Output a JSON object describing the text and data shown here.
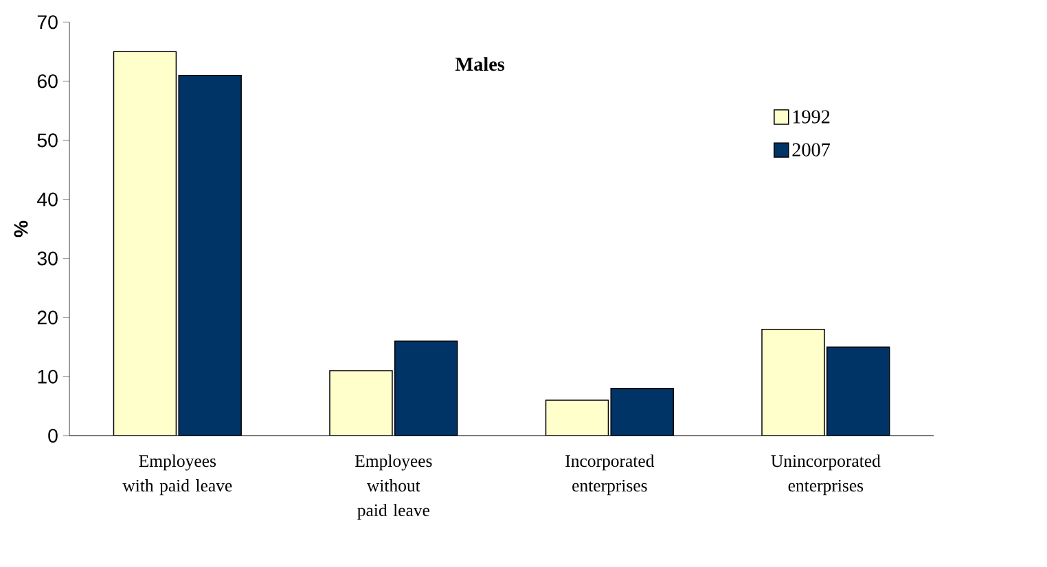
{
  "chart_data": {
    "type": "bar",
    "title": "Males",
    "ylabel": "%",
    "categories": [
      "Employees with paid leave",
      "Employees without paid leave",
      "Incorporated enterprises",
      "Unincorporated enterprises"
    ],
    "series": [
      {
        "name": "1992",
        "color": "#ffffcc",
        "values": [
          65,
          11,
          6,
          18
        ]
      },
      {
        "name": "2007",
        "color": "#003366",
        "values": [
          61,
          16,
          8,
          15
        ]
      }
    ],
    "ylim": [
      0,
      70
    ],
    "yticks": [
      0,
      10,
      20,
      30,
      40,
      50,
      60,
      70
    ],
    "grid": false,
    "legend": "right"
  }
}
